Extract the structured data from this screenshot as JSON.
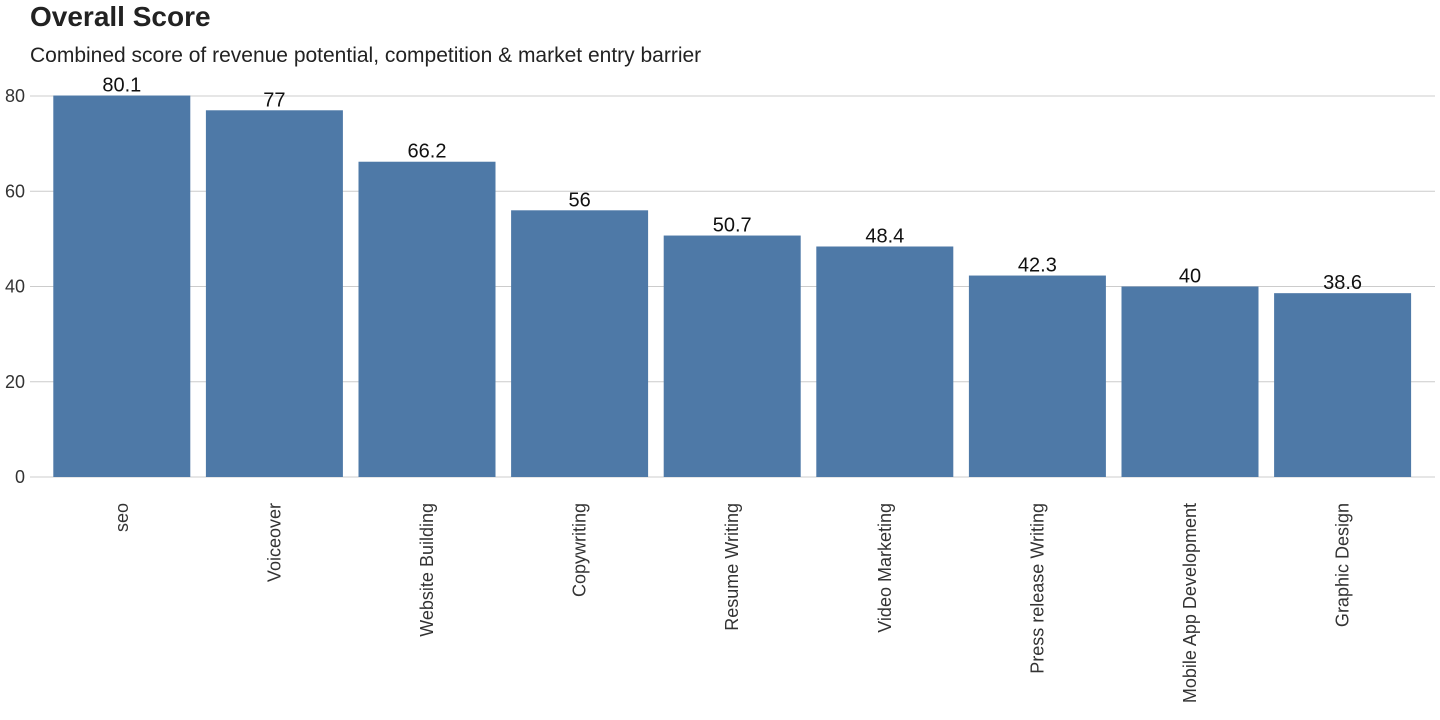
{
  "chart": {
    "title": "Overall Score",
    "subtitle": "Combined score of revenue potential, competition & market entry barrier"
  },
  "chart_data": {
    "type": "bar",
    "title": "Overall Score",
    "subtitle": "Combined score of revenue potential, competition & market entry barrier",
    "categories": [
      "seo",
      "Voiceover",
      "Website Building",
      "Copywriting",
      "Resume Writing",
      "Video Marketing",
      "Press release Writing",
      "Mobile App Development",
      "Graphic Design"
    ],
    "values": [
      80.1,
      77,
      66.2,
      56,
      50.7,
      48.4,
      42.3,
      40,
      38.6
    ],
    "value_labels": [
      "80.1",
      "77",
      "66.2",
      "56",
      "50.7",
      "48.4",
      "42.3",
      "40",
      "38.6"
    ],
    "y_ticks": [
      0,
      20,
      40,
      60,
      80
    ],
    "ylim": [
      0,
      80
    ],
    "xlabel": "",
    "ylabel": "",
    "grid": true,
    "bar_color": "#4e79a7",
    "grid_color": "#cccccc"
  }
}
